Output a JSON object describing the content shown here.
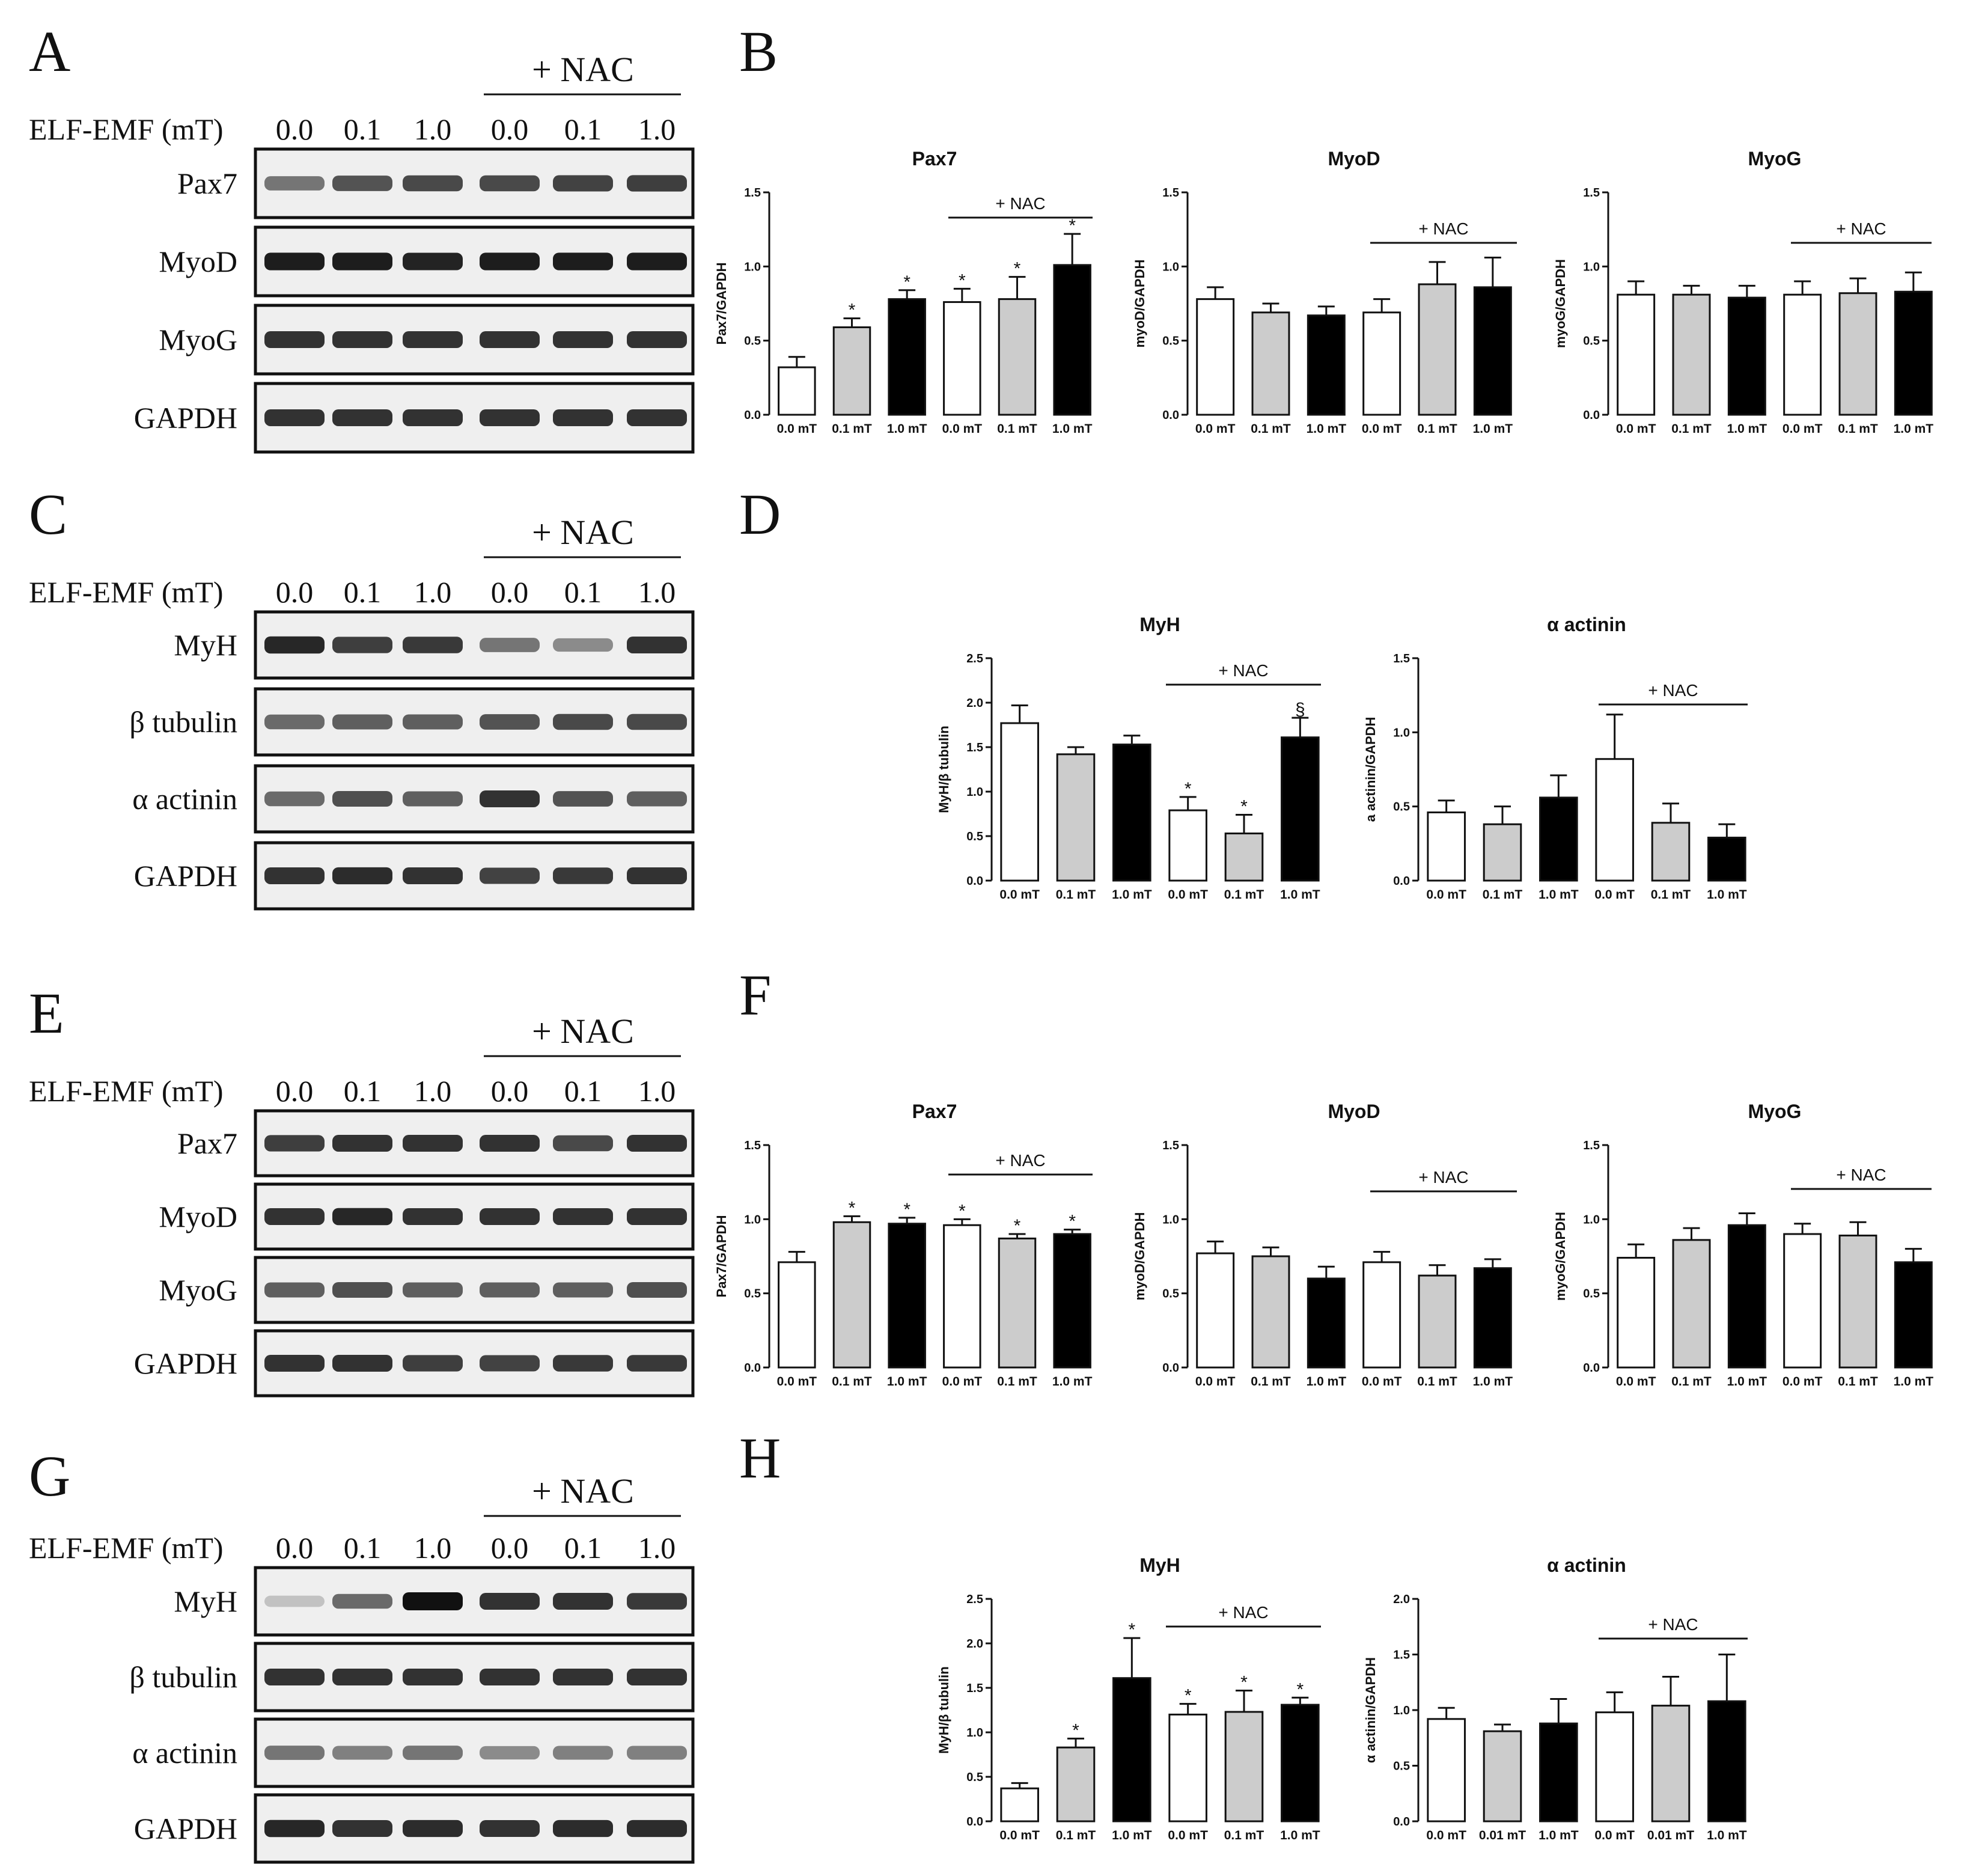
{
  "colors": {
    "white": "#ffffff",
    "gray": "#cccccc",
    "black": "#000000",
    "line": "#111111"
  },
  "blots": [
    {
      "letter": "A",
      "nac": "+ NAC",
      "dose_label": "ELF-EMF (mT)",
      "doses": [
        "0.0",
        "0.1",
        "1.0",
        "0.0",
        "0.1",
        "1.0"
      ],
      "rows": [
        {
          "name": "Pax7",
          "intensity": [
            0.55,
            0.7,
            0.75,
            0.75,
            0.78,
            0.8
          ]
        },
        {
          "name": "MyoD",
          "intensity": [
            0.95,
            0.95,
            0.92,
            0.95,
            0.95,
            0.95
          ]
        },
        {
          "name": "MyoG",
          "intensity": [
            0.85,
            0.85,
            0.85,
            0.85,
            0.85,
            0.85
          ]
        },
        {
          "name": "GAPDH",
          "intensity": [
            0.85,
            0.85,
            0.85,
            0.85,
            0.85,
            0.85
          ]
        }
      ]
    },
    {
      "letter": "C",
      "nac": "+ NAC",
      "dose_label": "ELF-EMF (mT)",
      "doses": [
        "0.0",
        "0.1",
        "1.0",
        "0.0",
        "0.1",
        "1.0"
      ],
      "rows": [
        {
          "name": "MyH",
          "intensity": [
            0.9,
            0.8,
            0.82,
            0.55,
            0.45,
            0.85
          ]
        },
        {
          "name": "β tubulin",
          "intensity": [
            0.6,
            0.65,
            0.65,
            0.7,
            0.75,
            0.75
          ]
        },
        {
          "name": "α actinin",
          "intensity": [
            0.6,
            0.72,
            0.65,
            0.85,
            0.7,
            0.65
          ]
        },
        {
          "name": "GAPDH",
          "intensity": [
            0.85,
            0.88,
            0.85,
            0.78,
            0.82,
            0.85
          ]
        }
      ]
    },
    {
      "letter": "E",
      "nac": "+ NAC",
      "dose_label": "ELF-EMF (mT)",
      "doses": [
        "0.0",
        "0.1",
        "1.0",
        "0.0",
        "0.1",
        "1.0"
      ],
      "rows": [
        {
          "name": "Pax7",
          "intensity": [
            0.8,
            0.85,
            0.85,
            0.85,
            0.75,
            0.85
          ]
        },
        {
          "name": "MyoD",
          "intensity": [
            0.85,
            0.9,
            0.85,
            0.85,
            0.85,
            0.85
          ]
        },
        {
          "name": "MyoG",
          "intensity": [
            0.65,
            0.72,
            0.65,
            0.65,
            0.65,
            0.72
          ]
        },
        {
          "name": "GAPDH",
          "intensity": [
            0.85,
            0.85,
            0.8,
            0.78,
            0.82,
            0.82
          ]
        }
      ]
    },
    {
      "letter": "G",
      "nac": "+ NAC",
      "dose_label": "ELF-EMF (mT)",
      "doses": [
        "0.0",
        "0.1",
        "1.0",
        "0.0",
        "0.1",
        "1.0"
      ],
      "rows": [
        {
          "name": "MyH",
          "intensity": [
            0.2,
            0.6,
            1.0,
            0.85,
            0.85,
            0.82
          ]
        },
        {
          "name": "β tubulin",
          "intensity": [
            0.85,
            0.85,
            0.85,
            0.85,
            0.85,
            0.85
          ]
        },
        {
          "name": "α actinin",
          "intensity": [
            0.55,
            0.5,
            0.55,
            0.45,
            0.5,
            0.5
          ]
        },
        {
          "name": "GAPDH",
          "intensity": [
            0.9,
            0.85,
            0.88,
            0.85,
            0.88,
            0.88
          ]
        }
      ]
    }
  ],
  "chart_letters": [
    "B",
    "D",
    "F",
    "H"
  ],
  "chart_data": [
    {
      "type": "bar",
      "title": "Pax7",
      "ylabel": "Pax7/GAPDH",
      "ylim": [
        0,
        1.5
      ],
      "yticks": [
        "0.0",
        "0.5",
        "1.0",
        "1.5"
      ],
      "categories": [
        "0.0 mT",
        "0.1 mT",
        "1.0 mT",
        "0.0 mT",
        "0.1 mT",
        "1.0 mT"
      ],
      "fills": [
        "white",
        "gray",
        "black",
        "white",
        "gray",
        "black"
      ],
      "values": [
        0.32,
        0.59,
        0.78,
        0.76,
        0.78,
        1.01
      ],
      "errors": [
        0.07,
        0.06,
        0.06,
        0.09,
        0.15,
        0.21
      ],
      "marks": [
        "",
        "*",
        "*",
        "*",
        "*",
        "*"
      ],
      "nac": "+ NAC"
    },
    {
      "type": "bar",
      "title": "MyoD",
      "ylabel": "myoD/GAPDH",
      "ylim": [
        0,
        1.5
      ],
      "yticks": [
        "0.0",
        "0.5",
        "1.0",
        "1.5"
      ],
      "categories": [
        "0.0 mT",
        "0.1 mT",
        "1.0 mT",
        "0.0 mT",
        "0.1 mT",
        "1.0 mT"
      ],
      "fills": [
        "white",
        "gray",
        "black",
        "white",
        "gray",
        "black"
      ],
      "values": [
        0.78,
        0.69,
        0.67,
        0.69,
        0.88,
        0.86
      ],
      "errors": [
        0.08,
        0.06,
        0.06,
        0.09,
        0.15,
        0.2
      ],
      "marks": [
        "",
        "",
        "",
        "",
        "",
        ""
      ],
      "nac": "+ NAC"
    },
    {
      "type": "bar",
      "title": "MyoG",
      "ylabel": "myoG/GAPDH",
      "ylim": [
        0,
        1.5
      ],
      "yticks": [
        "0.0",
        "0.5",
        "1.0",
        "1.5"
      ],
      "categories": [
        "0.0 mT",
        "0.1 mT",
        "1.0 mT",
        "0.0 mT",
        "0.1 mT",
        "1.0 mT"
      ],
      "fills": [
        "white",
        "gray",
        "black",
        "white",
        "gray",
        "black"
      ],
      "values": [
        0.81,
        0.81,
        0.79,
        0.81,
        0.82,
        0.83
      ],
      "errors": [
        0.09,
        0.06,
        0.08,
        0.09,
        0.1,
        0.13
      ],
      "marks": [
        "",
        "",
        "",
        "",
        "",
        ""
      ],
      "nac": "+ NAC"
    },
    {
      "type": "bar",
      "title": "MyH",
      "ylabel": "MyH/β tubulin",
      "ylim": [
        0,
        2.5
      ],
      "yticks": [
        "0.0",
        "0.5",
        "1.0",
        "1.5",
        "2.0",
        "2.5"
      ],
      "categories": [
        "0.0 mT",
        "0.1 mT",
        "1.0 mT",
        "0.0 mT",
        "0.1 mT",
        "1.0 mT"
      ],
      "fills": [
        "white",
        "gray",
        "black",
        "white",
        "gray",
        "black"
      ],
      "values": [
        1.77,
        1.42,
        1.53,
        0.79,
        0.53,
        1.61
      ],
      "errors": [
        0.2,
        0.08,
        0.1,
        0.15,
        0.21,
        0.22
      ],
      "marks": [
        "",
        "",
        "",
        "*",
        "*",
        "§"
      ],
      "nac": "+ NAC"
    },
    {
      "type": "bar",
      "title": "α actinin",
      "ylabel": "a actinin/GAPDH",
      "ylim": [
        0,
        1.5
      ],
      "yticks": [
        "0.0",
        "0.5",
        "1.0",
        "1.5"
      ],
      "categories": [
        "0.0 mT",
        "0.1 mT",
        "1.0 mT",
        "0.0 mT",
        "0.1 mT",
        "1.0 mT"
      ],
      "fills": [
        "white",
        "gray",
        "black",
        "white",
        "gray",
        "black"
      ],
      "values": [
        0.46,
        0.38,
        0.56,
        0.82,
        0.39,
        0.29
      ],
      "errors": [
        0.08,
        0.12,
        0.15,
        0.3,
        0.13,
        0.09
      ],
      "marks": [
        "",
        "",
        "",
        "",
        "",
        ""
      ],
      "nac": "+ NAC"
    },
    {
      "type": "bar",
      "title": "Pax7",
      "ylabel": "Pax7/GAPDH",
      "ylim": [
        0,
        1.5
      ],
      "yticks": [
        "0.0",
        "0.5",
        "1.0",
        "1.5"
      ],
      "categories": [
        "0.0 mT",
        "0.1 mT",
        "1.0 mT",
        "0.0 mT",
        "0.1 mT",
        "1.0 mT"
      ],
      "fills": [
        "white",
        "gray",
        "black",
        "white",
        "gray",
        "black"
      ],
      "values": [
        0.71,
        0.98,
        0.97,
        0.96,
        0.87,
        0.9
      ],
      "errors": [
        0.07,
        0.04,
        0.04,
        0.04,
        0.03,
        0.03
      ],
      "marks": [
        "",
        "*",
        "*",
        "*",
        "*",
        "*"
      ],
      "nac": "+ NAC"
    },
    {
      "type": "bar",
      "title": "MyoD",
      "ylabel": "myoD/GAPDH",
      "ylim": [
        0,
        1.5
      ],
      "yticks": [
        "0.0",
        "0.5",
        "1.0",
        "1.5"
      ],
      "categories": [
        "0.0 mT",
        "0.1 mT",
        "1.0 mT",
        "0.0 mT",
        "0.1 mT",
        "1.0 mT"
      ],
      "fills": [
        "white",
        "gray",
        "black",
        "white",
        "gray",
        "black"
      ],
      "values": [
        0.77,
        0.75,
        0.6,
        0.71,
        0.62,
        0.67
      ],
      "errors": [
        0.08,
        0.06,
        0.08,
        0.07,
        0.07,
        0.06
      ],
      "marks": [
        "",
        "",
        "",
        "",
        "",
        ""
      ],
      "nac": "+ NAC"
    },
    {
      "type": "bar",
      "title": "MyoG",
      "ylabel": "myoG/GAPDH",
      "ylim": [
        0,
        1.5
      ],
      "yticks": [
        "0.0",
        "0.5",
        "1.0",
        "1.5"
      ],
      "categories": [
        "0.0 mT",
        "0.1 mT",
        "1.0 mT",
        "0.0 mT",
        "0.1 mT",
        "1.0 mT"
      ],
      "fills": [
        "white",
        "gray",
        "black",
        "white",
        "gray",
        "black"
      ],
      "values": [
        0.74,
        0.86,
        0.96,
        0.9,
        0.89,
        0.71
      ],
      "errors": [
        0.09,
        0.08,
        0.08,
        0.07,
        0.09,
        0.09
      ],
      "marks": [
        "",
        "",
        "",
        "",
        "",
        ""
      ],
      "nac": "+ NAC"
    },
    {
      "type": "bar",
      "title": "MyH",
      "ylabel": "MyH/β tubulin",
      "ylim": [
        0,
        2.5
      ],
      "yticks": [
        "0.0",
        "0.5",
        "1.0",
        "1.5",
        "2.0",
        "2.5"
      ],
      "categories": [
        "0.0 mT",
        "0.1 mT",
        "1.0 mT",
        "0.0 mT",
        "0.1 mT",
        "1.0 mT"
      ],
      "fills": [
        "white",
        "gray",
        "black",
        "white",
        "gray",
        "black"
      ],
      "values": [
        0.37,
        0.83,
        1.61,
        1.2,
        1.23,
        1.31
      ],
      "errors": [
        0.06,
        0.1,
        0.45,
        0.12,
        0.24,
        0.08
      ],
      "marks": [
        "",
        "*",
        "*",
        "*",
        "*",
        "*"
      ],
      "nac": "+ NAC"
    },
    {
      "type": "bar",
      "title": "α actinin",
      "ylabel": "α actinin/GAPDH",
      "ylim": [
        0,
        2.0
      ],
      "yticks": [
        "0.0",
        "0.5",
        "1.0",
        "1.5",
        "2.0"
      ],
      "categories": [
        "0.0 mT",
        "0.01 mT",
        "1.0 mT",
        "0.0 mT",
        "0.01 mT",
        "1.0 mT"
      ],
      "fills": [
        "white",
        "gray",
        "black",
        "white",
        "gray",
        "black"
      ],
      "values": [
        0.92,
        0.81,
        0.88,
        0.98,
        1.04,
        1.08
      ],
      "errors": [
        0.1,
        0.06,
        0.22,
        0.18,
        0.26,
        0.42
      ],
      "marks": [
        "",
        "",
        "",
        "",
        "",
        ""
      ],
      "nac": "+ NAC"
    }
  ]
}
